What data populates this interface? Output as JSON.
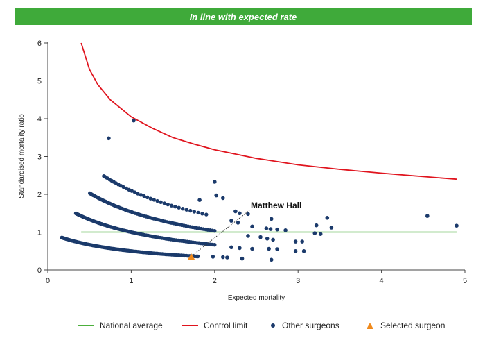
{
  "banner": {
    "text": "In line with expected rate",
    "color": "#3faa3a"
  },
  "colors": {
    "national_average": "#4caf3c",
    "control_limit": "#e0141e",
    "other_surgeons": "#1b3a6b",
    "selected_surgeon": "#f08a1c",
    "axis": "#444444"
  },
  "legend": {
    "national_average": "National average",
    "control_limit": "Control limit",
    "other_surgeons": "Other surgeons",
    "selected_surgeon": "Selected surgeon"
  },
  "chart_data": {
    "type": "scatter",
    "title": "",
    "xlabel": "Expected mortality",
    "ylabel": "Standardised mortality ratio",
    "xlim": [
      0,
      5
    ],
    "ylim": [
      0,
      6
    ],
    "x_ticks": [
      0,
      1,
      2,
      3,
      4,
      5
    ],
    "y_ticks": [
      0,
      1,
      2,
      3,
      4,
      5,
      6
    ],
    "x_tick_labels": [
      "0",
      "1",
      "2",
      "3",
      "4",
      "5"
    ],
    "y_tick_labels": [
      "0",
      "1",
      "2",
      "3",
      "4",
      "5",
      "6"
    ],
    "grid": false,
    "legend_position": "bottom",
    "national_average": {
      "y": 1,
      "x_range": [
        0.4,
        4.9
      ]
    },
    "control_limit": {
      "points": [
        [
          0.4,
          6.0
        ],
        [
          0.5,
          5.3
        ],
        [
          0.6,
          4.9
        ],
        [
          0.75,
          4.5
        ],
        [
          1.0,
          4.05
        ],
        [
          1.25,
          3.75
        ],
        [
          1.5,
          3.5
        ],
        [
          1.75,
          3.33
        ],
        [
          2.0,
          3.18
        ],
        [
          2.5,
          2.95
        ],
        [
          3.0,
          2.78
        ],
        [
          3.5,
          2.66
        ],
        [
          4.0,
          2.56
        ],
        [
          4.5,
          2.47
        ],
        [
          4.9,
          2.4
        ]
      ]
    },
    "other_surgeons": {
      "curves": [
        {
          "n": 1,
          "x_range": [
            0.0,
            1.8
          ],
          "count": 110
        },
        {
          "n": 2,
          "x_range": [
            0.0,
            2.0
          ],
          "count": 95
        },
        {
          "n": 3,
          "x_range": [
            0.12,
            2.0
          ],
          "count": 75
        },
        {
          "n": 4,
          "x_range": [
            0.45,
            1.9
          ],
          "count": 35
        }
      ],
      "scatter": [
        [
          1.03,
          3.95
        ],
        [
          0.73,
          3.48
        ],
        [
          2.0,
          2.33
        ],
        [
          2.02,
          1.97
        ],
        [
          2.1,
          1.9
        ],
        [
          1.82,
          1.85
        ],
        [
          2.25,
          1.55
        ],
        [
          2.3,
          1.5
        ],
        [
          2.4,
          1.48
        ],
        [
          2.2,
          1.3
        ],
        [
          2.28,
          1.25
        ],
        [
          2.45,
          1.15
        ],
        [
          2.62,
          1.1
        ],
        [
          2.67,
          1.08
        ],
        [
          2.68,
          1.35
        ],
        [
          2.75,
          1.07
        ],
        [
          2.85,
          1.05
        ],
        [
          2.4,
          0.9
        ],
        [
          2.55,
          0.87
        ],
        [
          2.63,
          0.83
        ],
        [
          2.7,
          0.8
        ],
        [
          2.75,
          0.55
        ],
        [
          2.65,
          0.56
        ],
        [
          2.97,
          0.75
        ],
        [
          3.05,
          0.75
        ],
        [
          3.2,
          0.97
        ],
        [
          3.27,
          0.95
        ],
        [
          3.22,
          1.18
        ],
        [
          3.35,
          1.38
        ],
        [
          3.4,
          1.12
        ],
        [
          2.97,
          0.5
        ],
        [
          3.07,
          0.5
        ],
        [
          2.68,
          0.27
        ],
        [
          2.33,
          0.3
        ],
        [
          2.15,
          0.33
        ],
        [
          2.1,
          0.34
        ],
        [
          1.98,
          0.35
        ],
        [
          4.55,
          1.43
        ],
        [
          4.9,
          1.17
        ],
        [
          2.2,
          0.6
        ],
        [
          2.3,
          0.58
        ],
        [
          2.45,
          0.56
        ]
      ]
    },
    "selected_surgeon": {
      "name": "Matthew Hall",
      "x": 1.72,
      "y": 0.33,
      "label_x": 2.45,
      "label_y": 1.65
    }
  }
}
